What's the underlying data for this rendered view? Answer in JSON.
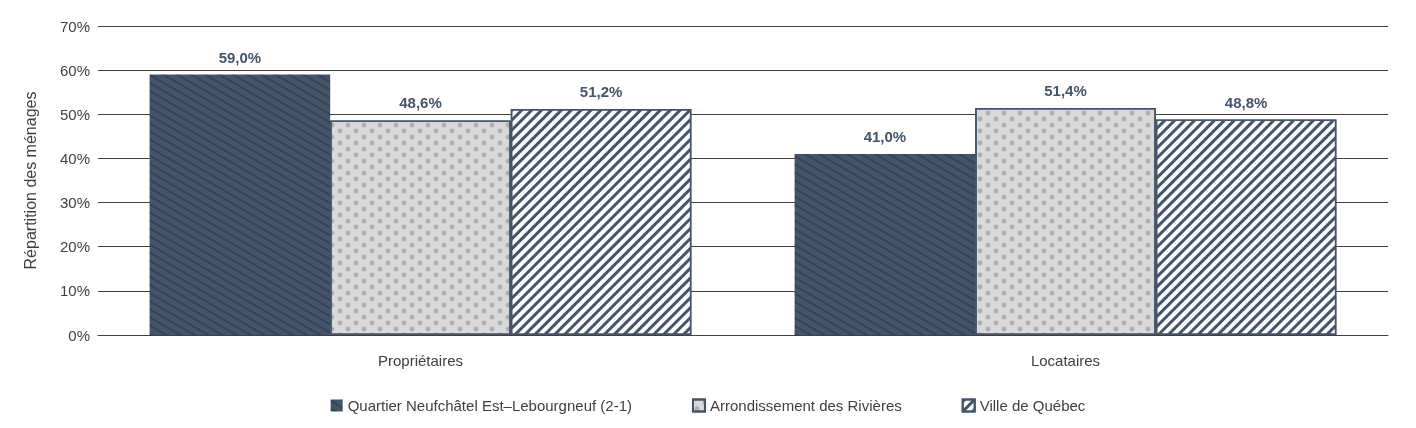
{
  "chart_data": {
    "type": "bar",
    "ylabel": "Répartition des ménages",
    "categories": [
      "Propriétaires",
      "Locataires"
    ],
    "series": [
      {
        "name": "Quartier Neufchâtel Est–Lebourgneuf (2-1)",
        "color": "#44546a",
        "values": [
          59.0,
          41.0
        ],
        "value_labels": [
          "59,0%",
          "41,0%"
        ]
      },
      {
        "name": "Arrondissement des Rivières",
        "color": "#d9d9d9",
        "values": [
          48.6,
          51.4
        ],
        "value_labels": [
          "48,6%",
          "51,4%"
        ]
      },
      {
        "name": "Ville de Québec",
        "color": "#44546a",
        "values": [
          51.2,
          48.8
        ],
        "value_labels": [
          "51,2%",
          "48,8%"
        ]
      }
    ],
    "ylim": [
      0,
      70
    ],
    "yticks": [
      {
        "value": 0,
        "label": "0%"
      },
      {
        "value": 10,
        "label": "10%"
      },
      {
        "value": 20,
        "label": "20%"
      },
      {
        "value": 30,
        "label": "30%"
      },
      {
        "value": 40,
        "label": "40%"
      },
      {
        "value": 50,
        "label": "50%"
      },
      {
        "value": 60,
        "label": "60%"
      },
      {
        "value": 70,
        "label": "70%"
      }
    ],
    "grid": "y",
    "legend": "bottom"
  }
}
